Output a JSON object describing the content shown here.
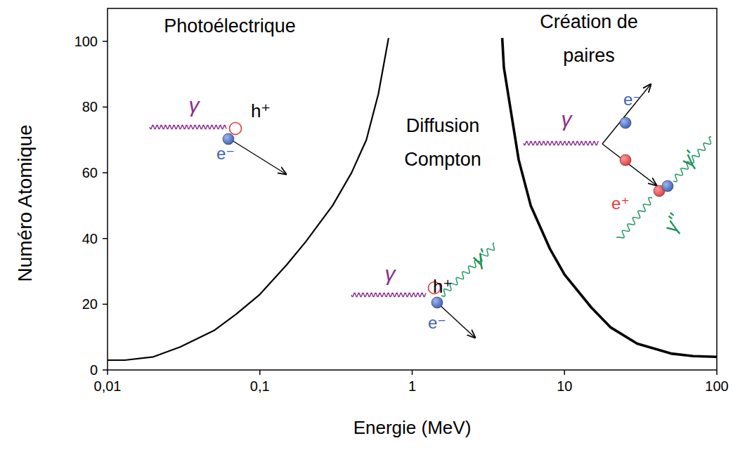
{
  "chart_data": {
    "type": "line",
    "x_label": "Energie (MeV)",
    "y_label": "Numéro Atomique",
    "log": "x",
    "grid": false,
    "xlim": [
      0.01,
      100
    ],
    "ylim": [
      0,
      110
    ],
    "xticks": [
      {
        "value": 0.01,
        "label": "0,01"
      },
      {
        "value": 0.1,
        "label": "0,1"
      },
      1,
      10,
      100
    ],
    "yticks": [
      0,
      20,
      40,
      60,
      80,
      100
    ],
    "series": [
      {
        "color": "#000000",
        "x": [
          0.01,
          0.013,
          0.02,
          0.03,
          0.05,
          0.07,
          0.1,
          0.15,
          0.2,
          0.3,
          0.4,
          0.5,
          0.6,
          0.7
        ],
        "values": [
          3,
          3,
          4,
          7,
          12,
          17,
          23,
          32,
          39,
          50,
          60,
          70,
          84,
          101
        ]
      },
      {
        "color": "#000000",
        "x": [
          3.9,
          4,
          5,
          6,
          8,
          10,
          15,
          20,
          30,
          50,
          70,
          100
        ],
        "values": [
          101,
          92,
          64,
          50,
          37,
          29,
          19,
          13,
          8,
          5,
          4.2,
          4
        ]
      }
    ],
    "regions": [
      {
        "lines": [
          "Photoélectrique"
        ]
      },
      {
        "lines": [
          "Diffusion",
          "Compton"
        ]
      },
      {
        "lines": [
          "Création de",
          "paires"
        ]
      }
    ],
    "annotations": [
      "γ",
      "h⁺",
      "e⁻",
      "γ",
      "h⁺",
      "γ'",
      "e⁻",
      "γ",
      "e⁻",
      "γ'",
      "e⁺",
      "γ''"
    ]
  }
}
